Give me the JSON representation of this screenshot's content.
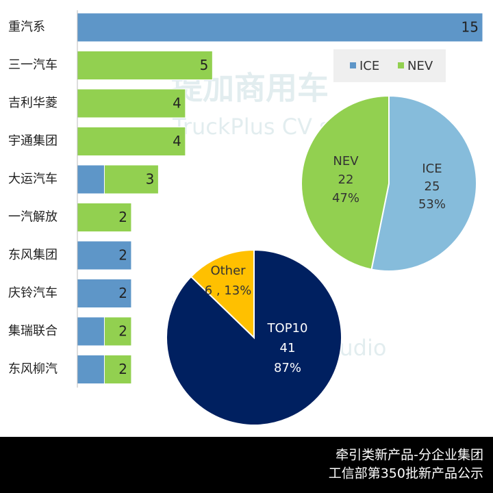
{
  "chart_data": [
    {
      "type": "stacked-bar",
      "categories": [
        "重汽系",
        "三一汽车",
        "吉利华菱",
        "宇通集团",
        "大运汽车",
        "一汽解放",
        "东风集团",
        "庆铃汽车",
        "集瑞联合",
        "东风柳汽"
      ],
      "series": [
        {
          "name": "ICE",
          "color": "#5e96c8",
          "values": [
            15,
            0,
            0,
            0,
            1,
            0,
            2,
            2,
            1,
            1
          ]
        },
        {
          "name": "NEV",
          "color": "#92d050",
          "values": [
            0,
            5,
            4,
            4,
            2,
            2,
            0,
            0,
            1,
            1
          ]
        }
      ],
      "totals": [
        15,
        5,
        4,
        4,
        3,
        2,
        2,
        2,
        2,
        2
      ],
      "xlim": [
        0,
        15
      ]
    },
    {
      "type": "pie",
      "categories": [
        "ICE",
        "NEV"
      ],
      "values": [
        25,
        22
      ],
      "colors": [
        "#86bcdb",
        "#92d050"
      ],
      "labels": [
        [
          "ICE",
          "25",
          "53%"
        ],
        [
          "NEV",
          "22",
          "47%"
        ]
      ]
    },
    {
      "type": "pie",
      "categories": [
        "TOP10",
        "Other"
      ],
      "values": [
        41,
        6
      ],
      "colors": [
        "#002060",
        "#ffc000"
      ],
      "labels": [
        [
          "TOP10",
          "41",
          "87%"
        ],
        [
          "Other",
          "6 , 13%"
        ]
      ]
    }
  ],
  "watermark": [
    "提加商用车",
    "TruckPlus CV studio"
  ],
  "footer": [
    "牵引类新产品-分企业集团",
    "工信部第350批新产品公示"
  ]
}
